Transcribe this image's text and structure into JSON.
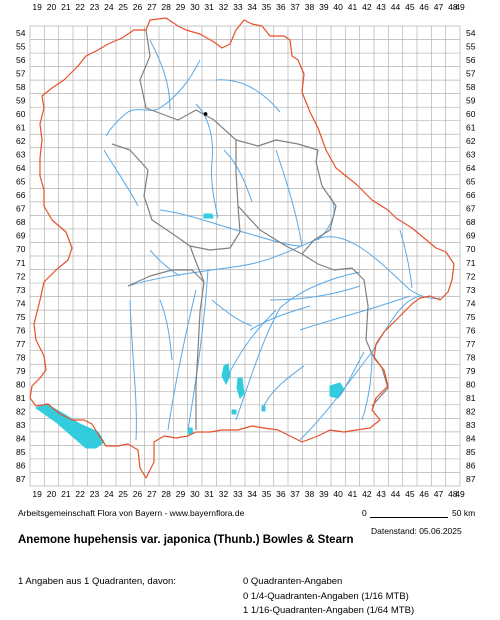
{
  "map": {
    "grid_columns": [
      "19",
      "20",
      "21",
      "22",
      "23",
      "24",
      "25",
      "26",
      "27",
      "28",
      "29",
      "30",
      "31",
      "32",
      "33",
      "34",
      "35",
      "36",
      "37",
      "38",
      "39",
      "40",
      "41",
      "42",
      "43",
      "44",
      "45",
      "46",
      "47",
      "48",
      "49"
    ],
    "grid_rows": [
      "54",
      "55",
      "56",
      "57",
      "58",
      "59",
      "60",
      "61",
      "62",
      "63",
      "64",
      "65",
      "66",
      "67",
      "68",
      "69",
      "70",
      "71",
      "72",
      "73",
      "74",
      "75",
      "76",
      "77",
      "78",
      "79",
      "80",
      "81",
      "82",
      "83",
      "84",
      "85",
      "86",
      "87"
    ],
    "occurrences": [
      {
        "col": 30.75,
        "row": 60.0
      }
    ],
    "colors": {
      "grid": "#b3b3b3",
      "state_border": "#e8502a",
      "district_border": "#808080",
      "rivers": "#5aa9e6",
      "lakes": "#33ccdd",
      "occurrence": "#000000"
    }
  },
  "footer": {
    "credit": "Arbeitsgemeinschaft Flora von Bayern - www.bayernflora.de",
    "scale_start": "0",
    "scale_end": "50 km",
    "date": "Datenstand: 05.06.2025",
    "title": "Anemone hupehensis var. japonica (Thunb.) Bowles & Stearn",
    "summary": "1 Angaben aus 1 Quadranten, davon:",
    "stats": [
      "0 Quadranten-Angaben",
      "0 1/4-Quadranten-Angaben (1/16 MTB)",
      "1 1/16-Quadranten-Angaben (1/64 MTB)"
    ]
  }
}
